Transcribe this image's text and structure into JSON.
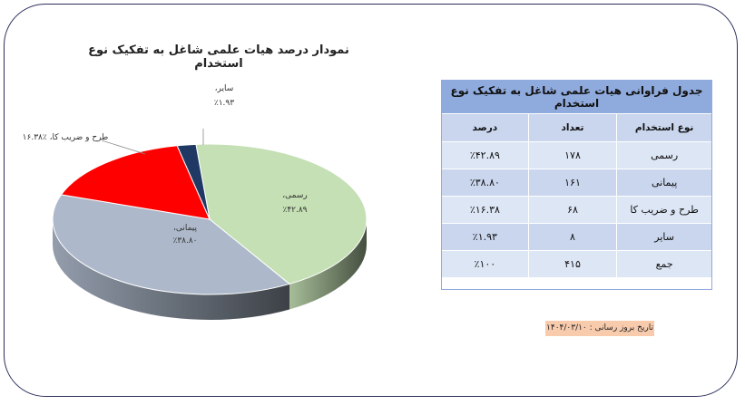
{
  "chart_data": {
    "type": "pie",
    "title": "نمودار درصد هیات علمی شاغل به تفکیک نوع استخدام",
    "slices": [
      {
        "label": "رسمی",
        "value": 42.89,
        "display": "٪۴۲.۸۹",
        "color": "#c5e0b4"
      },
      {
        "label": "پیمانی",
        "value": 38.8,
        "display": "٪۳۸.۸۰",
        "color": "#adb9ca"
      },
      {
        "label": "طرح و ضریب کا",
        "value": 16.38,
        "display": "٪۱۶.۳۸",
        "color": "#ff0000"
      },
      {
        "label": "سایر",
        "value": 1.93,
        "display": "٪۱.۹۳",
        "color": "#1f3864"
      }
    ]
  },
  "table": {
    "title": "جدول فراوانی هیات علمی شاغل به تفکیک نوع استخدام",
    "headers": [
      "نوع استخدام",
      "تعداد",
      "درصد"
    ],
    "rows": [
      [
        "رسمی",
        "۱۷۸",
        "٪۴۲.۸۹"
      ],
      [
        "پیمانی",
        "۱۶۱",
        "٪۳۸.۸۰"
      ],
      [
        "طرح و ضریب کا",
        "۶۸",
        "٪۱۶.۳۸"
      ],
      [
        "سایر",
        "۸",
        "٪۱.۹۳"
      ],
      [
        "جمع",
        "۴۱۵",
        "٪۱۰۰"
      ]
    ]
  },
  "update_note": "تاریخ بروز رسانی : ۱۴۰۴/۰۳/۱۰"
}
